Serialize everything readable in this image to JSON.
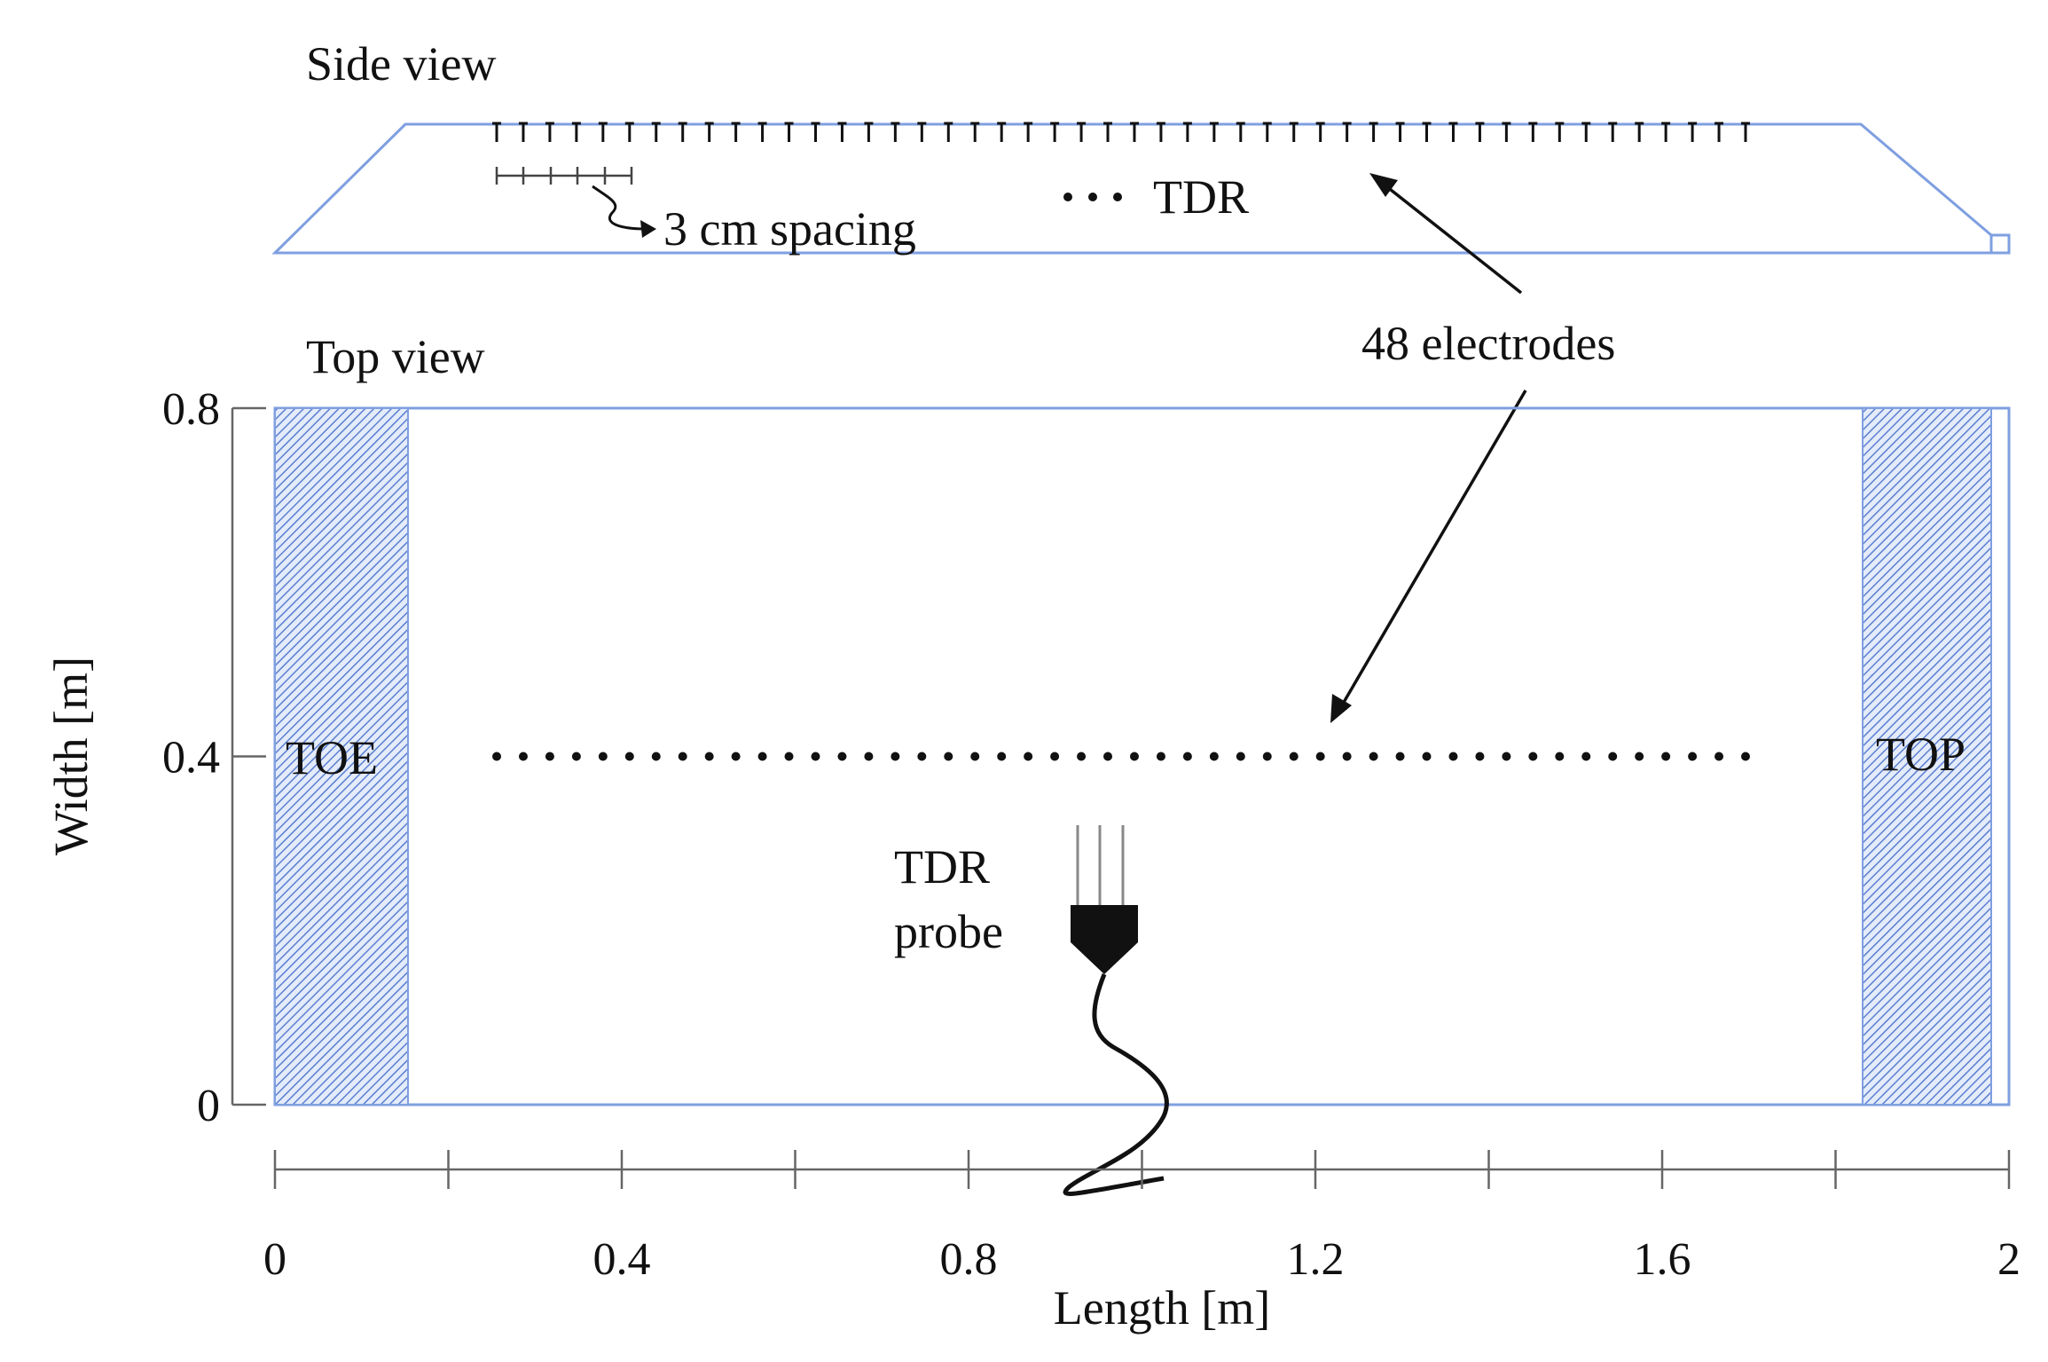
{
  "side_view": {
    "title": "Side view",
    "spacing_label": "3 cm spacing",
    "tdr_legend": "TDR"
  },
  "top_view": {
    "title": "Top view",
    "toe_label": "TOE",
    "top_label": "TOP",
    "probe_label_line1": "TDR",
    "probe_label_line2": "probe"
  },
  "electrodes_label": "48  electrodes",
  "electrode_count": 48,
  "axes": {
    "x": {
      "label": "Length [m]",
      "min": 0,
      "max": 2,
      "ticks": [
        "0",
        "0.4",
        "0.8",
        "1.2",
        "1.6",
        "2"
      ]
    },
    "y": {
      "label": "Width [m]",
      "min": 0,
      "max": 0.8,
      "ticks": [
        "0",
        "0.4",
        "0.8"
      ]
    }
  },
  "colors": {
    "outline": "#7f9fe0",
    "hatch": "#5a7fd0",
    "ink": "#111111"
  }
}
